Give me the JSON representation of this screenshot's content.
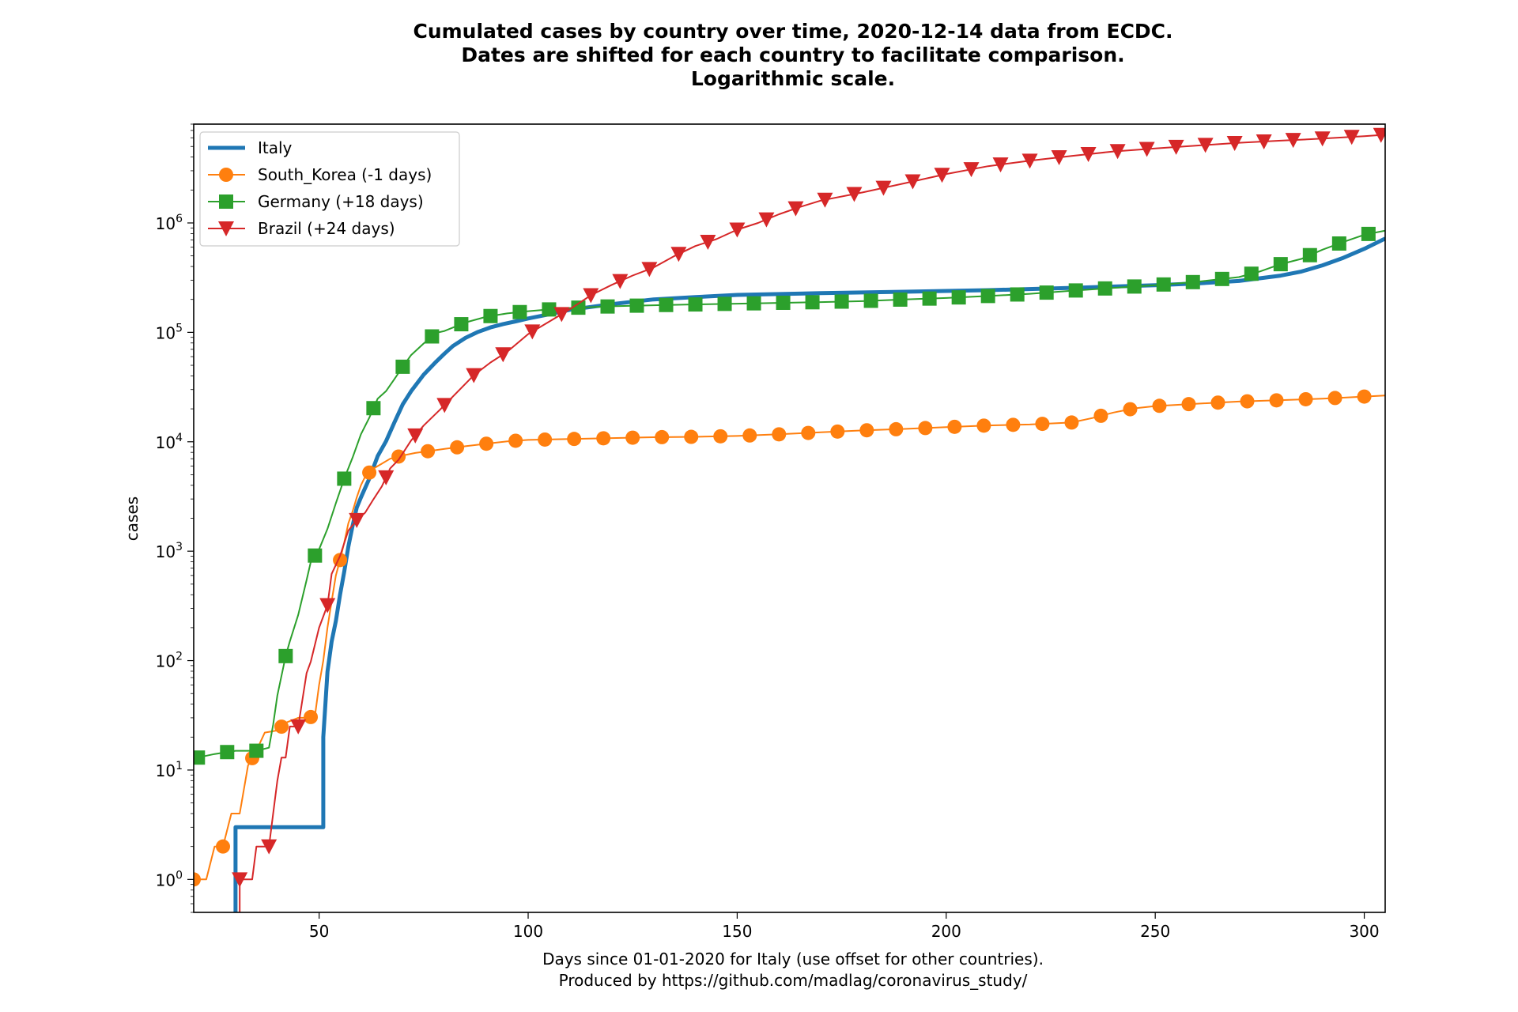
{
  "chart_data": {
    "type": "line",
    "title_lines": [
      "Cumulated cases by country over time, 2020-12-14 data from ECDC.",
      "Dates are shifted for each country to facilitate comparison.",
      "Logarithmic scale."
    ],
    "xlabel_lines": [
      "Days since 01-01-2020 for Italy (use offset for other countries).",
      "Produced by https://github.com/madlag/coronavirus_study/"
    ],
    "ylabel": "cases",
    "x_scale": "linear",
    "y_scale": "log",
    "xlim": [
      20,
      305
    ],
    "ylim": [
      0.5,
      8000000
    ],
    "x_ticks": [
      50,
      100,
      150,
      200,
      250,
      300
    ],
    "y_ticks": [
      {
        "value": 1,
        "base": "10",
        "exp": "0"
      },
      {
        "value": 10,
        "base": "10",
        "exp": "1"
      },
      {
        "value": 100,
        "base": "10",
        "exp": "2"
      },
      {
        "value": 1000,
        "base": "10",
        "exp": "3"
      },
      {
        "value": 10000,
        "base": "10",
        "exp": "4"
      },
      {
        "value": 100000,
        "base": "10",
        "exp": "5"
      },
      {
        "value": 1000000,
        "base": "10",
        "exp": "6"
      }
    ],
    "grid": false,
    "legend_position": "upper-left",
    "series": [
      {
        "name": "Italy",
        "color": "#1f77b4",
        "marker": "none",
        "line_width": 5,
        "x": [
          30,
          30,
          31,
          51,
          51,
          52,
          53,
          54,
          55,
          56,
          57,
          58,
          59,
          60,
          62,
          64,
          66,
          68,
          70,
          72,
          75,
          78,
          80,
          82,
          85,
          88,
          91,
          94,
          97,
          100,
          105,
          110,
          120,
          130,
          140,
          150,
          170,
          190,
          210,
          230,
          250,
          260,
          270,
          280,
          285,
          290,
          295,
          300,
          305
        ],
        "y": [
          0.5,
          3,
          3,
          3,
          20,
          79,
          150,
          230,
          400,
          650,
          1100,
          1700,
          2500,
          3100,
          4600,
          7400,
          10100,
          15000,
          22000,
          29000,
          41000,
          54000,
          64000,
          75000,
          89000,
          101000,
          111000,
          119000,
          126000,
          134000,
          146000,
          161000,
          181000,
          200000,
          210000,
          220000,
          228000,
          235000,
          243000,
          255000,
          270000,
          280000,
          295000,
          330000,
          360000,
          410000,
          480000,
          580000,
          720000
        ]
      },
      {
        "name": "South_Korea (-1 days)",
        "color": "#ff7f0e",
        "marker": "circle",
        "line_width": 2,
        "x": [
          20,
          23,
          25,
          27,
          29,
          31,
          33,
          35,
          37,
          40,
          42,
          45,
          47,
          49,
          50,
          51,
          52,
          53,
          54,
          55,
          56,
          57,
          58,
          59,
          60,
          61,
          63,
          65,
          67,
          70,
          73,
          77,
          80,
          85,
          90,
          95,
          100,
          110,
          120,
          130,
          140,
          150,
          160,
          170,
          180,
          190,
          200,
          210,
          220,
          230,
          235,
          240,
          245,
          250,
          260,
          270,
          280,
          290,
          300,
          305
        ],
        "y": [
          1,
          1,
          2,
          2,
          4,
          4,
          11,
          15,
          22,
          23,
          27,
          30,
          30,
          31,
          60,
          100,
          200,
          350,
          600,
          830,
          1200,
          1800,
          2300,
          3100,
          4000,
          4800,
          5700,
          6300,
          7000,
          7500,
          7900,
          8300,
          8600,
          9100,
          9600,
          10100,
          10400,
          10600,
          10800,
          11000,
          11100,
          11300,
          11700,
          12200,
          12700,
          13100,
          13600,
          14100,
          14400,
          15000,
          16500,
          18500,
          20200,
          21200,
          22300,
          23300,
          24000,
          24800,
          25900,
          26500
        ]
      },
      {
        "name": "Germany (+18 days)",
        "color": "#2ca02c",
        "marker": "square",
        "line_width": 2,
        "x": [
          21,
          25,
          30,
          35,
          38,
          39,
          40,
          42,
          43,
          45,
          47,
          48,
          50,
          52,
          54,
          56,
          58,
          60,
          62,
          64,
          66,
          68,
          70,
          72,
          75,
          78,
          80,
          85,
          90,
          95,
          100,
          105,
          110,
          120,
          130,
          140,
          150,
          160,
          170,
          180,
          190,
          200,
          210,
          220,
          230,
          240,
          250,
          260,
          270,
          275,
          280,
          285,
          290,
          295,
          300,
          305
        ],
        "y": [
          13,
          14,
          15,
          15,
          16,
          26,
          48,
          110,
          150,
          262,
          545,
          800,
          1040,
          1600,
          2745,
          4600,
          7150,
          11700,
          16600,
          24800,
          29000,
          37300,
          48500,
          62000,
          79000,
          99000,
          103000,
          123000,
          139000,
          149000,
          156000,
          162000,
          167000,
          173000,
          177000,
          180000,
          183000,
          186000,
          189000,
          193000,
          200000,
          206000,
          215000,
          225000,
          240000,
          255000,
          270000,
          290000,
          320000,
          360000,
          420000,
          470000,
          570000,
          670000,
          780000,
          850000
        ]
      },
      {
        "name": "Brazil (+24 days)",
        "color": "#d62728",
        "marker": "triangle-down",
        "line_width": 2,
        "x": [
          31,
          31,
          32,
          34,
          35,
          36,
          38,
          39,
          40,
          41,
          42,
          43,
          45,
          47,
          48,
          50,
          52,
          53,
          55,
          57,
          59,
          61,
          63,
          65,
          67,
          69,
          72,
          75,
          79,
          83,
          87,
          91,
          95,
          100,
          105,
          110,
          115,
          120,
          125,
          130,
          135,
          140,
          145,
          150,
          155,
          160,
          165,
          170,
          180,
          190,
          200,
          210,
          220,
          230,
          240,
          250,
          260,
          270,
          280,
          290,
          300,
          305
        ],
        "y": [
          0.5,
          1,
          1,
          1,
          2,
          2,
          2,
          4,
          8,
          13,
          13,
          25,
          25,
          77,
          98,
          200,
          321,
          621,
          904,
          1546,
          1924,
          2247,
          2985,
          3904,
          5717,
          6836,
          10278,
          14049,
          19789,
          28320,
          40581,
          52995,
          66501,
          96396,
          125218,
          162699,
          218223,
          271628,
          330890,
          391222,
          498440,
          614941,
          710887,
          867624,
          1000000,
          1200000,
          1400000,
          1600000,
          1900000,
          2300000,
          2800000,
          3300000,
          3700000,
          4100000,
          4500000,
          4800000,
          5100000,
          5400000,
          5650000,
          5900000,
          6200000,
          6400000
        ]
      }
    ]
  }
}
